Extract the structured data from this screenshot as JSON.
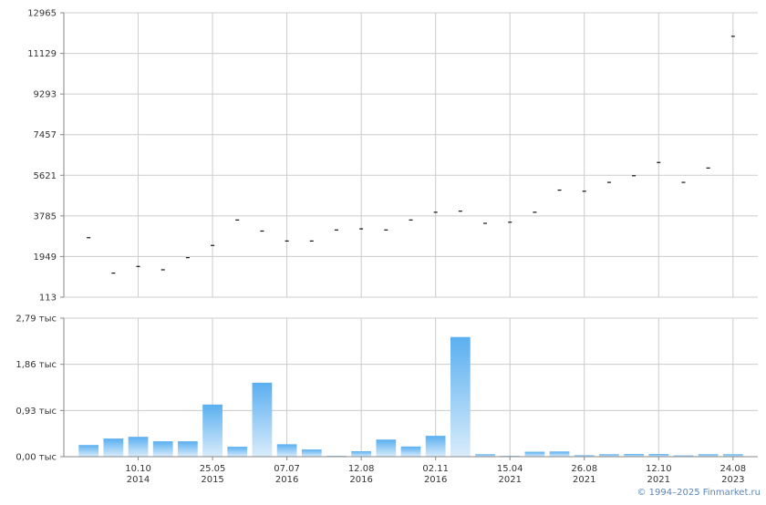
{
  "chart_data": [
    {
      "type": "scatter",
      "panel": "price",
      "marker": "dash",
      "y_ticks": [
        "12965",
        "11129",
        "9293",
        "7457",
        "5621",
        "3785",
        "1949",
        "113"
      ],
      "ylim": [
        113,
        12965
      ],
      "grid": true,
      "x": [
        1,
        2,
        3,
        4,
        5,
        6,
        7,
        8,
        9,
        10,
        11,
        12,
        13,
        14,
        15,
        16,
        17,
        18,
        19,
        20,
        21,
        22,
        23,
        24,
        25,
        26,
        27
      ],
      "values": [
        2800,
        1200,
        1500,
        1350,
        1900,
        2450,
        3600,
        3100,
        2650,
        2650,
        3150,
        3200,
        3150,
        3600,
        3950,
        4000,
        3450,
        3500,
        3950,
        4950,
        4900,
        5300,
        5600,
        6200,
        5300,
        5950,
        11900
      ]
    },
    {
      "type": "bar",
      "panel": "volume",
      "y_ticks": [
        "2,79 тыс",
        "1,86 тыс",
        "0,93 тыс",
        "0,00 тыс"
      ],
      "ylim": [
        0,
        2790
      ],
      "grid": true,
      "x": [
        1,
        2,
        3,
        4,
        5,
        6,
        7,
        8,
        9,
        10,
        11,
        12,
        13,
        14,
        15,
        16,
        17,
        18,
        19,
        20,
        21,
        22,
        23,
        24,
        25,
        26,
        27
      ],
      "values": [
        235,
        365,
        400,
        310,
        310,
        1050,
        200,
        1490,
        250,
        145,
        15,
        110,
        345,
        205,
        420,
        2410,
        50,
        10,
        100,
        105,
        30,
        50,
        55,
        55,
        25,
        50,
        50
      ],
      "x_ticks": [
        {
          "x": 3,
          "day": "10.10",
          "year": "2014"
        },
        {
          "x": 6,
          "day": "25.05",
          "year": "2015"
        },
        {
          "x": 9,
          "day": "07.07",
          "year": "2016"
        },
        {
          "x": 12,
          "day": "12.08",
          "year": "2016"
        },
        {
          "x": 15,
          "day": "02.11",
          "year": "2016"
        },
        {
          "x": 18,
          "day": "15.04",
          "year": "2021"
        },
        {
          "x": 21,
          "day": "26.08",
          "year": "2021"
        },
        {
          "x": 24,
          "day": "12.10",
          "year": "2021"
        },
        {
          "x": 27,
          "day": "24.08",
          "year": "2023"
        }
      ]
    }
  ],
  "copyright": "© 1994–2025 Finmarket.ru",
  "colors": {
    "bar_top": "#5aaff0",
    "bar_bottom": "#d9ecfb",
    "marker": "#111111",
    "grid": "#cccccc",
    "axis": "#888888"
  }
}
